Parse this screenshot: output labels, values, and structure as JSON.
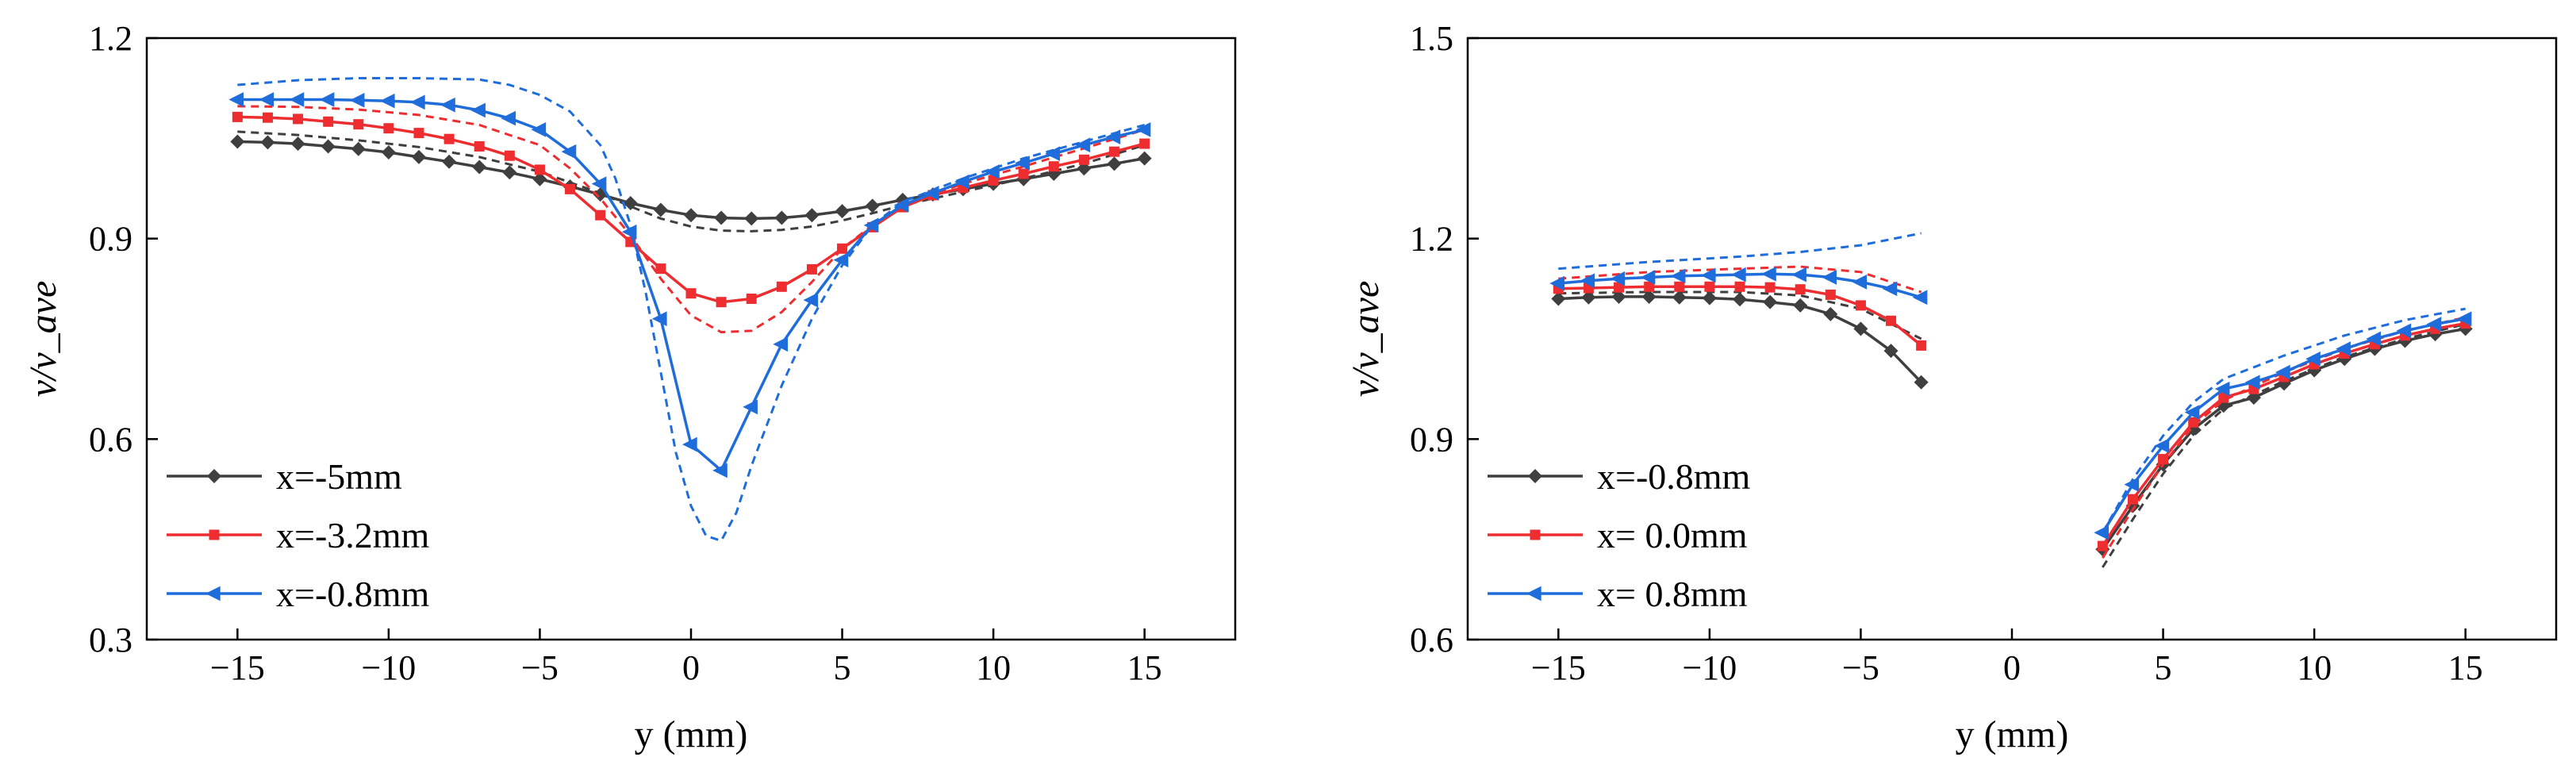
{
  "chart_data": [
    {
      "type": "line",
      "name": "left",
      "xlabel": "y (mm)",
      "ylabel": "v/v_ave",
      "xlim": [
        -18,
        18
      ],
      "ylim": [
        0.3,
        1.2
      ],
      "xticks": [
        -15,
        -10,
        -5,
        0,
        5,
        10,
        15
      ],
      "yticks": [
        0.3,
        0.6,
        0.9,
        1.2
      ],
      "xtick_labels": [
        "−15",
        "−10",
        "−5",
        "0",
        "5",
        "10",
        "15"
      ],
      "ytick_labels": [
        "0.3",
        "0.6",
        "0.9",
        "1.2"
      ],
      "legend_position": "bottom-left",
      "series": [
        {
          "name": "x=-5mm",
          "color": "#3f3f3f",
          "marker": "diamond",
          "x": [
            -15,
            -14,
            -13,
            -12,
            -11,
            -10,
            -9,
            -8,
            -7,
            -6,
            -5,
            -4,
            -3,
            -2,
            -1,
            0,
            1,
            2,
            3,
            4,
            5,
            6,
            7,
            8,
            9,
            10,
            11,
            12,
            13,
            14,
            15
          ],
          "y": [
            1.045,
            1.044,
            1.042,
            1.038,
            1.034,
            1.029,
            1.022,
            1.015,
            1.007,
            0.999,
            0.989,
            0.978,
            0.966,
            0.953,
            0.943,
            0.935,
            0.931,
            0.93,
            0.931,
            0.935,
            0.941,
            0.949,
            0.958,
            0.966,
            0.974,
            0.982,
            0.989,
            0.997,
            1.005,
            1.012,
            1.02
          ],
          "model_x": [
            -15,
            -13,
            -11,
            -9,
            -7,
            -5,
            -3,
            -2,
            -1,
            0,
            1,
            2,
            3,
            4,
            5,
            6,
            7,
            9,
            11,
            13,
            15
          ],
          "model_y": [
            1.06,
            1.055,
            1.047,
            1.037,
            1.022,
            1.0,
            0.968,
            0.948,
            0.93,
            0.918,
            0.912,
            0.911,
            0.913,
            0.918,
            0.927,
            0.938,
            0.95,
            0.97,
            0.99,
            1.012,
            1.04
          ]
        },
        {
          "name": "x=-3.2mm",
          "color": "#ee2d30",
          "marker": "square",
          "x": [
            -15,
            -14,
            -13,
            -12,
            -11,
            -10,
            -9,
            -8,
            -7,
            -6,
            -5,
            -4,
            -3,
            -2,
            -1,
            0,
            1,
            2,
            3,
            4,
            5,
            6,
            7,
            8,
            9,
            10,
            11,
            12,
            13,
            14,
            15
          ],
          "y": [
            1.082,
            1.081,
            1.079,
            1.075,
            1.071,
            1.065,
            1.058,
            1.049,
            1.038,
            1.024,
            1.003,
            0.974,
            0.935,
            0.895,
            0.855,
            0.818,
            0.805,
            0.81,
            0.828,
            0.854,
            0.885,
            0.917,
            0.947,
            0.965,
            0.976,
            0.987,
            0.997,
            1.008,
            1.018,
            1.03,
            1.042
          ],
          "model_x": [
            -15,
            -13,
            -11,
            -9,
            -7,
            -5,
            -4,
            -3,
            -2,
            -1,
            0,
            1,
            2,
            3,
            4,
            5,
            6,
            7,
            9,
            11,
            13,
            15
          ],
          "model_y": [
            1.098,
            1.097,
            1.093,
            1.085,
            1.07,
            1.04,
            1.005,
            0.96,
            0.905,
            0.84,
            0.785,
            0.76,
            0.762,
            0.79,
            0.835,
            0.885,
            0.92,
            0.95,
            0.982,
            1.008,
            1.035,
            1.063
          ]
        },
        {
          "name": "x=-0.8mm",
          "color": "#1f6ddb",
          "marker": "triangle-left",
          "x": [
            -15,
            -14,
            -13,
            -12,
            -11,
            -10,
            -9,
            -8,
            -7,
            -6,
            -5,
            -4,
            -3,
            -2,
            -1,
            0,
            1,
            2,
            3,
            4,
            5,
            6,
            7,
            8,
            9,
            10,
            11,
            12,
            13,
            14,
            15
          ],
          "y": [
            1.108,
            1.108,
            1.108,
            1.108,
            1.107,
            1.106,
            1.104,
            1.1,
            1.092,
            1.08,
            1.063,
            1.03,
            0.982,
            0.91,
            0.78,
            0.592,
            0.553,
            0.648,
            0.742,
            0.808,
            0.868,
            0.92,
            0.95,
            0.968,
            0.985,
            1.0,
            1.013,
            1.027,
            1.04,
            1.052,
            1.063
          ],
          "model_x": [
            -15,
            -13,
            -11,
            -9,
            -7,
            -6,
            -5,
            -4,
            -3,
            -2.5,
            -2,
            -1.5,
            -1,
            -0.5,
            0,
            0.5,
            1,
            1.5,
            2,
            3,
            4,
            5,
            6,
            7,
            9,
            11,
            13,
            15
          ],
          "model_y": [
            1.13,
            1.137,
            1.14,
            1.14,
            1.138,
            1.13,
            1.115,
            1.09,
            1.04,
            0.99,
            0.92,
            0.82,
            0.7,
            0.58,
            0.5,
            0.455,
            0.448,
            0.49,
            0.56,
            0.68,
            0.78,
            0.86,
            0.92,
            0.955,
            0.99,
            1.02,
            1.045,
            1.07
          ]
        }
      ]
    },
    {
      "type": "line",
      "name": "right",
      "xlabel": "y (mm)",
      "ylabel": "v/v_ave",
      "xlim": [
        -18,
        18
      ],
      "ylim": [
        0.6,
        1.5
      ],
      "xticks": [
        -15,
        -10,
        -5,
        0,
        5,
        10,
        15
      ],
      "yticks": [
        0.6,
        0.9,
        1.2,
        1.5
      ],
      "xtick_labels": [
        "−15",
        "−10",
        "−5",
        "0",
        "5",
        "10",
        "15"
      ],
      "ytick_labels": [
        "0.6",
        "0.9",
        "1.2",
        "1.5"
      ],
      "legend_position": "bottom-left",
      "series": [
        {
          "name": "x=-0.8mm",
          "color": "#3f3f3f",
          "marker": "diamond",
          "segments": [
            {
              "x": [
                -15,
                -14,
                -13,
                -12,
                -11,
                -10,
                -9,
                -8,
                -7,
                -6,
                -5,
                -4,
                -3
              ],
              "y": [
                1.11,
                1.112,
                1.113,
                1.113,
                1.112,
                1.111,
                1.109,
                1.105,
                1.1,
                1.087,
                1.065,
                1.032,
                0.985
              ]
            },
            {
              "x": [
                3,
                4,
                5,
                6,
                7,
                8,
                9,
                10,
                11,
                12,
                13,
                14,
                15
              ],
              "y": [
                0.735,
                0.8,
                0.862,
                0.915,
                0.95,
                0.962,
                0.983,
                1.003,
                1.02,
                1.035,
                1.047,
                1.057,
                1.065
              ]
            }
          ],
          "model_segments": [
            {
              "x": [
                -15,
                -12,
                -9,
                -7,
                -5,
                -3
              ],
              "y": [
                1.118,
                1.12,
                1.12,
                1.115,
                1.095,
                1.05
              ]
            },
            {
              "x": [
                3,
                4,
                5,
                6,
                7,
                9,
                11,
                13,
                15
              ],
              "y": [
                0.708,
                0.78,
                0.848,
                0.905,
                0.945,
                0.987,
                1.023,
                1.05,
                1.072
              ]
            }
          ]
        },
        {
          "name": "x= 0.0mm",
          "color": "#ee2d30",
          "marker": "square",
          "segments": [
            {
              "x": [
                -15,
                -14,
                -13,
                -12,
                -11,
                -10,
                -9,
                -8,
                -7,
                -6,
                -5,
                -4,
                -3
              ],
              "y": [
                1.125,
                1.126,
                1.127,
                1.128,
                1.128,
                1.128,
                1.128,
                1.127,
                1.124,
                1.116,
                1.1,
                1.077,
                1.04
              ]
            },
            {
              "x": [
                3,
                4,
                5,
                6,
                7,
                8,
                9,
                10,
                11,
                12,
                13,
                14,
                15
              ],
              "y": [
                0.74,
                0.81,
                0.87,
                0.925,
                0.962,
                0.975,
                0.993,
                1.012,
                1.028,
                1.042,
                1.055,
                1.065,
                1.073
              ]
            }
          ],
          "model_segments": [
            {
              "x": [
                -15,
                -12,
                -9,
                -7,
                -5,
                -3
              ],
              "y": [
                1.14,
                1.15,
                1.155,
                1.158,
                1.15,
                1.12
              ]
            },
            {
              "x": [
                3,
                4,
                5,
                6,
                7,
                9,
                11,
                13,
                15
              ],
              "y": [
                0.722,
                0.795,
                0.862,
                0.92,
                0.958,
                1.0,
                1.035,
                1.062,
                1.082
              ]
            }
          ]
        },
        {
          "name": "x= 0.8mm",
          "color": "#1f6ddb",
          "marker": "triangle-left",
          "segments": [
            {
              "x": [
                -15,
                -14,
                -13,
                -12,
                -11,
                -10,
                -9,
                -8,
                -7,
                -6,
                -5,
                -4,
                -3
              ],
              "y": [
                1.133,
                1.137,
                1.14,
                1.142,
                1.144,
                1.145,
                1.146,
                1.147,
                1.146,
                1.142,
                1.135,
                1.125,
                1.112
              ]
            },
            {
              "x": [
                3,
                4,
                5,
                6,
                7,
                8,
                9,
                10,
                11,
                12,
                13,
                14,
                15
              ],
              "y": [
                0.76,
                0.832,
                0.89,
                0.94,
                0.975,
                0.985,
                1.0,
                1.02,
                1.035,
                1.05,
                1.062,
                1.072,
                1.08
              ]
            }
          ],
          "model_segments": [
            {
              "x": [
                -15,
                -12,
                -9,
                -7,
                -5,
                -3
              ],
              "y": [
                1.155,
                1.165,
                1.173,
                1.18,
                1.19,
                1.208
              ]
            },
            {
              "x": [
                3,
                4,
                5,
                6,
                7,
                9,
                11,
                13,
                15
              ],
              "y": [
                0.76,
                0.84,
                0.905,
                0.955,
                0.99,
                1.025,
                1.055,
                1.078,
                1.095
              ]
            }
          ]
        }
      ]
    }
  ]
}
